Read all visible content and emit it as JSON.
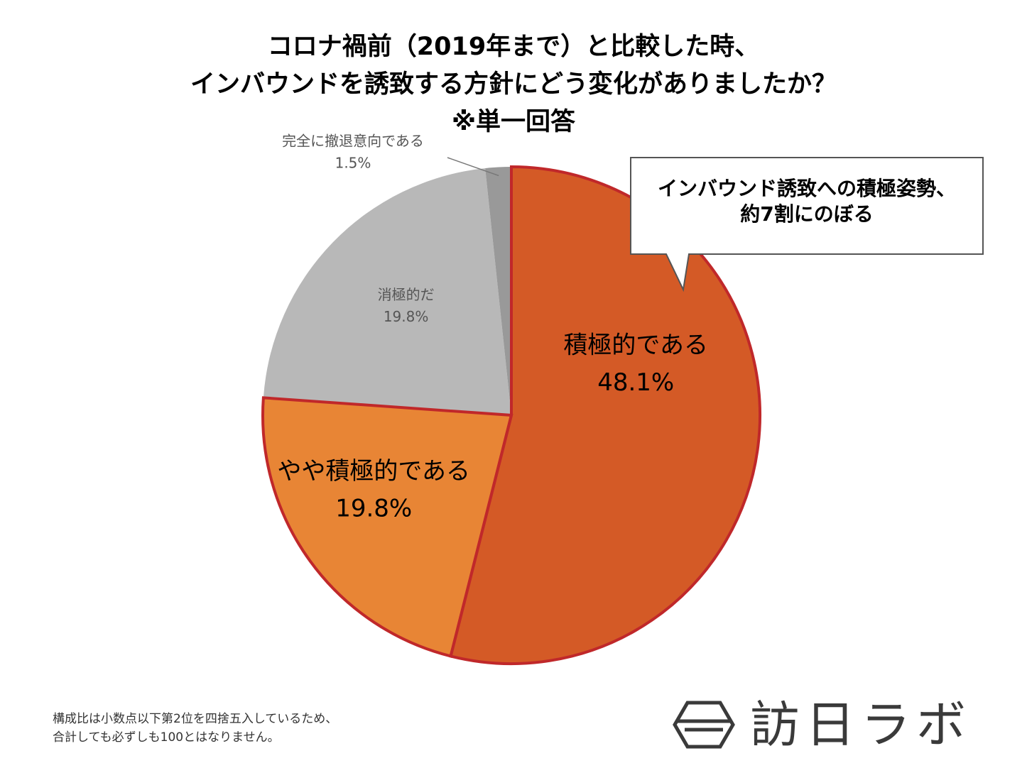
{
  "title": {
    "line1": "コロナ禍前（2019年まで）と比較した時、",
    "line2": "インバウンドを誘致する方針にどう変化がありましたか？",
    "line3": "※単一回答"
  },
  "callout": {
    "line1": "インバウンド誘致への積極姿勢、",
    "line2": "約7割にのぼる"
  },
  "footnote": {
    "line1": "構成比は小数点以下第2位を四捨五入しているため、",
    "line2": "合計しても必ずしも100とはなりません。"
  },
  "logo": {
    "text": "訪日ラボ"
  },
  "chart_data": {
    "type": "pie",
    "title": "コロナ禍前（2019年まで）と比較した時、インバウンドを誘致する方針にどう変化がありましたか？ ※単一回答",
    "slices": [
      {
        "label": "積極的である",
        "value": 48.1,
        "display": "48.1%",
        "color": "#d45a26",
        "highlight": true
      },
      {
        "label": "やや積極的である",
        "value": 19.8,
        "display": "19.8%",
        "color": "#e88535",
        "highlight": true
      },
      {
        "label": "消極的だ",
        "value": 19.8,
        "display": "19.8%",
        "color": "#b8b8b8",
        "highlight": false
      },
      {
        "label": "完全に撤退意向である",
        "value": 1.5,
        "display": "1.5%",
        "color": "#999999",
        "highlight": false
      }
    ],
    "highlight_border_color": "#c0282a"
  }
}
